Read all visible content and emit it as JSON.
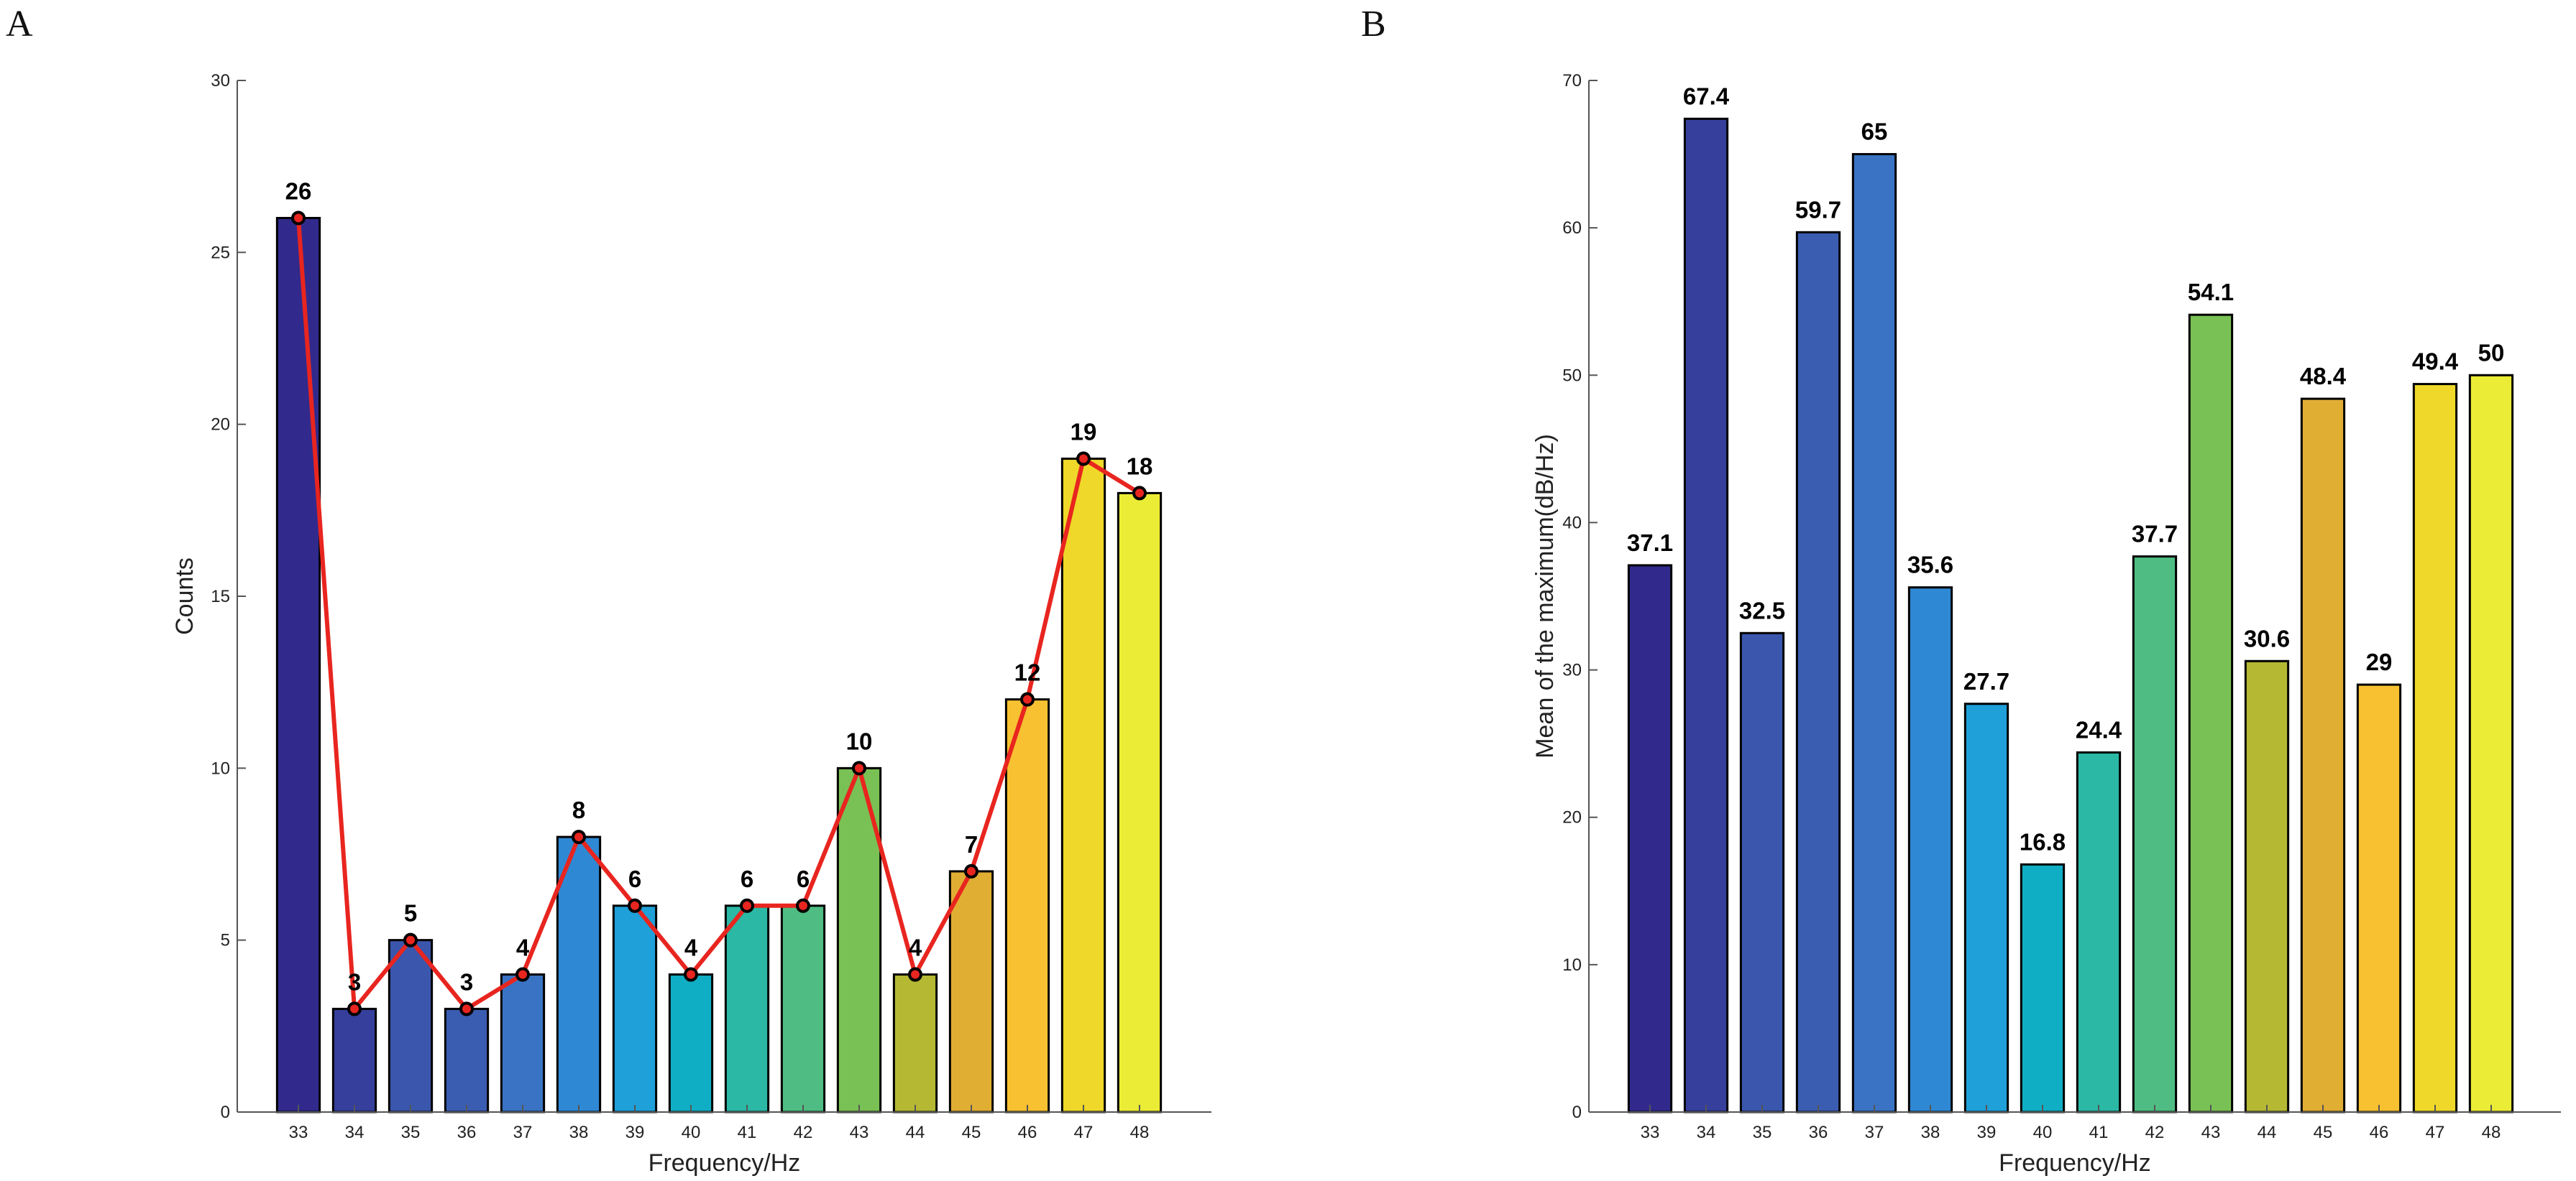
{
  "chart_data": [
    {
      "panel": "A",
      "type": "bar",
      "title": "",
      "xlabel": "Frequency/Hz",
      "ylabel": "Counts",
      "ylim": [
        0,
        30
      ],
      "yticks": [
        0,
        5,
        10,
        15,
        20,
        25,
        30
      ],
      "categories": [
        "33",
        "34",
        "35",
        "36",
        "37",
        "38",
        "39",
        "40",
        "41",
        "42",
        "43",
        "44",
        "45",
        "46",
        "47",
        "48"
      ],
      "values": [
        26,
        3,
        5,
        3,
        4,
        8,
        6,
        4,
        6,
        6,
        10,
        4,
        7,
        12,
        19,
        18
      ],
      "data_labels": [
        "26",
        "3",
        "5",
        "3",
        "4",
        "8",
        "6",
        "4",
        "6",
        "6",
        "10",
        "4",
        "7",
        "12",
        "19",
        "18"
      ],
      "overlay_line": {
        "color": "#e8251f",
        "marker_color": "#000000"
      },
      "colors": [
        "#312a8c",
        "#363f9b",
        "#3a56ad",
        "#3b5db1",
        "#3a73c3",
        "#2f88d4",
        "#1fa0d8",
        "#10aec4",
        "#2bb8a5",
        "#4fbd83",
        "#79c154",
        "#b5b833",
        "#e1ae34",
        "#f7c131",
        "#efd829",
        "#ebec36"
      ]
    },
    {
      "panel": "B",
      "type": "bar",
      "title": "",
      "xlabel": "Frequency/Hz",
      "ylabel": "Mean of the maximum(dB/Hz)",
      "ylim": [
        0,
        70
      ],
      "yticks": [
        0,
        10,
        20,
        30,
        40,
        50,
        60,
        70
      ],
      "categories": [
        "33",
        "34",
        "35",
        "36",
        "37",
        "38",
        "39",
        "40",
        "41",
        "42",
        "43",
        "44",
        "45",
        "46",
        "47",
        "48"
      ],
      "values": [
        37.1,
        67.4,
        32.5,
        59.7,
        65,
        35.6,
        27.7,
        16.8,
        24.4,
        37.7,
        54.1,
        30.6,
        48.4,
        29,
        49.4,
        50
      ],
      "data_labels": [
        "37.1",
        "67.4",
        "32.5",
        "59.7",
        "65",
        "35.6",
        "27.7",
        "16.8",
        "24.4",
        "37.7",
        "54.1",
        "30.6",
        "48.4",
        "29",
        "49.4",
        "50"
      ],
      "colors": [
        "#312a8c",
        "#363f9b",
        "#3a56ad",
        "#3b5db1",
        "#3a73c3",
        "#2f88d4",
        "#1fa0d8",
        "#10aec4",
        "#2bb8a5",
        "#4fbd83",
        "#79c154",
        "#b5b833",
        "#e1ae34",
        "#f7c131",
        "#efd829",
        "#ebec36"
      ]
    }
  ]
}
